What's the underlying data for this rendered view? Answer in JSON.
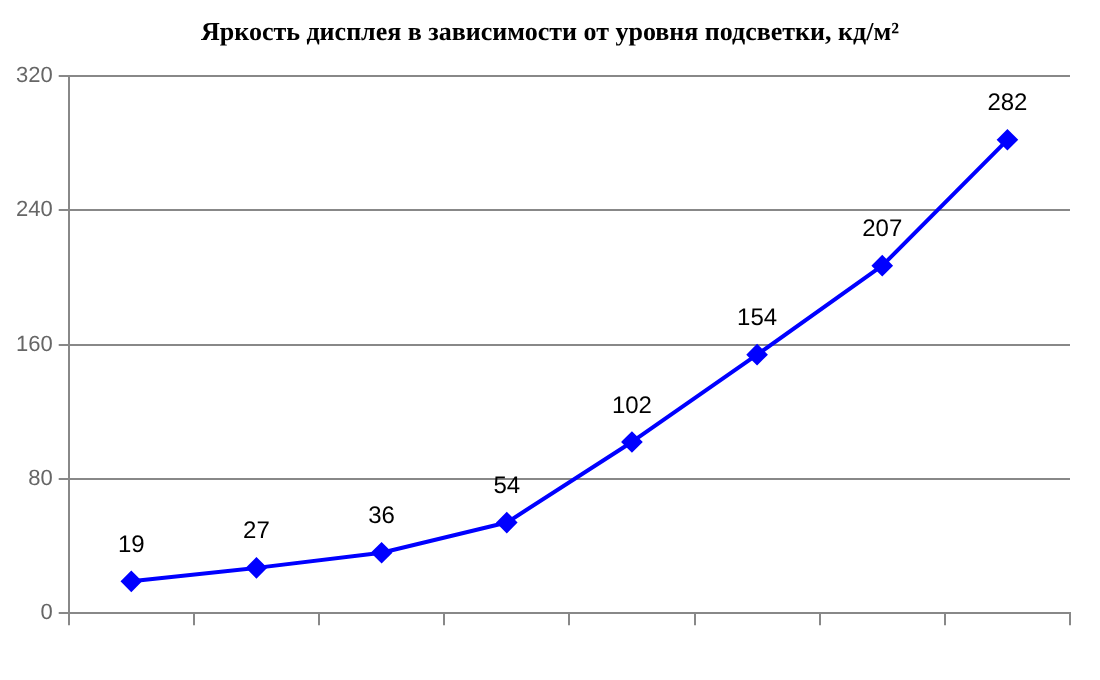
{
  "chart_data": {
    "type": "line",
    "title": "Яркость дисплея в зависимости от уровня подсветки, кд/м²",
    "categories": [
      null,
      null,
      null,
      null,
      null,
      null,
      null,
      null
    ],
    "series": [
      {
        "color": "#0000ff",
        "values": [
          19,
          27,
          36,
          54,
          102,
          154,
          207,
          282
        ]
      }
    ],
    "ylim": [
      0,
      320
    ],
    "yticks": [
      0,
      80,
      160,
      240,
      320
    ],
    "grid": "y",
    "marker": "diamond",
    "data_labels": true,
    "legend": false
  }
}
